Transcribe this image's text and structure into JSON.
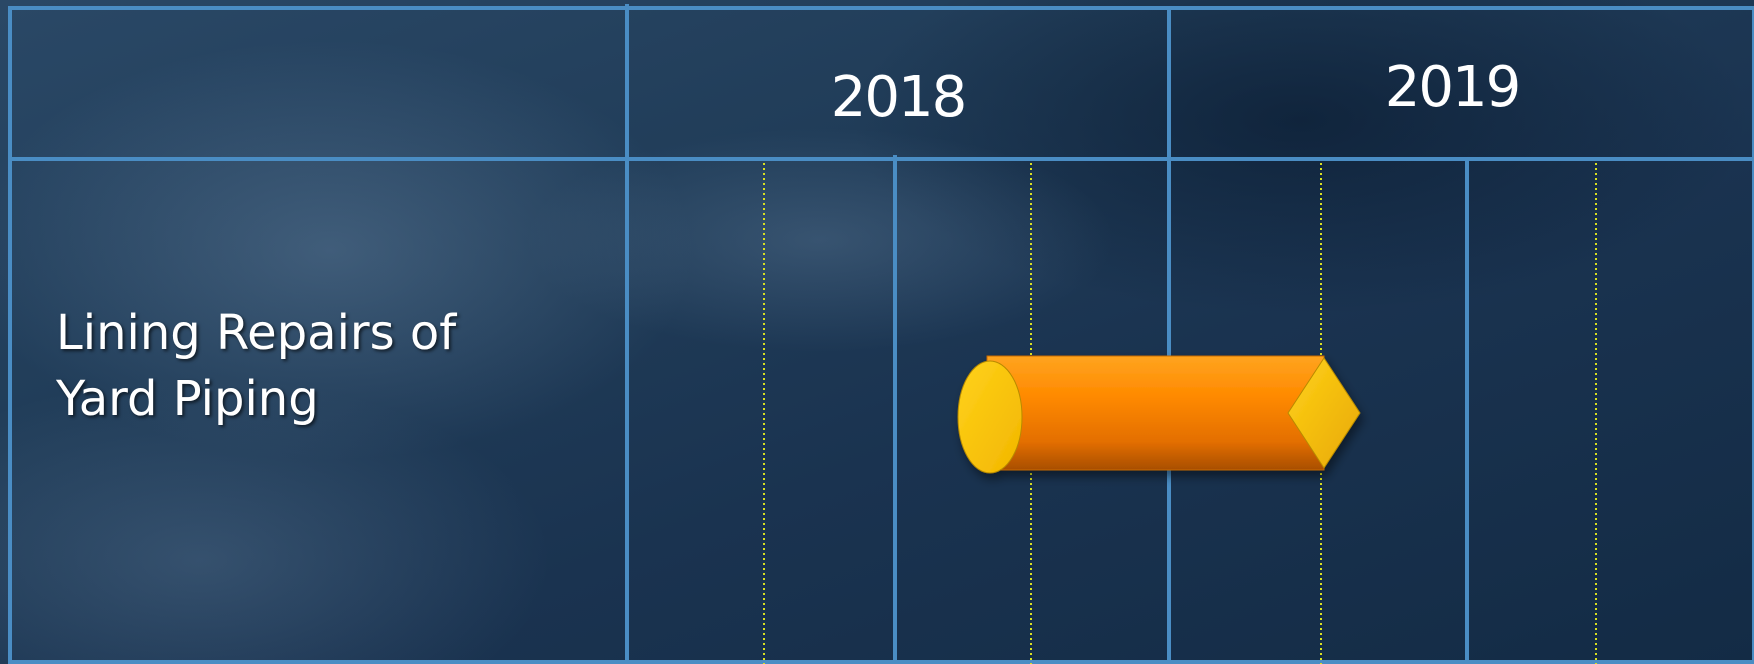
{
  "timeline": {
    "years": [
      "2018",
      "2019"
    ],
    "quarters_per_year": 2,
    "colors": {
      "grid": "#4a8dc4",
      "month_divider": "#d9e021",
      "bar": "#ff8c00",
      "start_marker": "#ffc800",
      "end_marker": "#ffc800",
      "text": "#ffffff"
    }
  },
  "tasks": [
    {
      "label_line1": "Lining Repairs of",
      "label_line2": "Yard Piping",
      "start": "2018-Q2 mid",
      "end": "2019-Q1 end",
      "start_marker": "ellipse",
      "end_marker": "diamond"
    }
  ]
}
